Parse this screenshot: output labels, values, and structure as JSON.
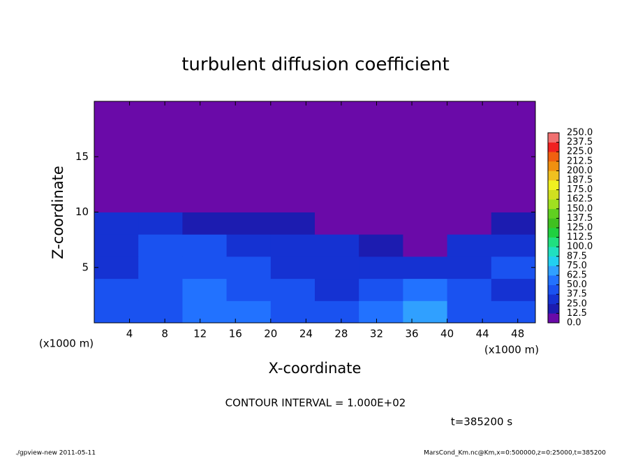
{
  "chart_data": {
    "type": "heatmap",
    "title": "turbulent diffusion coefficient",
    "xlabel": "X-coordinate",
    "ylabel": "Z-coordinate",
    "x_unit_label": "(x1000 m)",
    "annotation": "CONTOUR INTERVAL = 1.000E+02",
    "time_label": "t=385200 s",
    "footer_left": "./gpview-new  2011-05-11",
    "footer_right": "MarsCond_Km.nc@Km,x=0:500000,z=0:25000,t=385200",
    "xlim": [
      0,
      50
    ],
    "xticks": [
      4,
      8,
      12,
      16,
      20,
      24,
      28,
      32,
      36,
      40,
      44,
      48
    ],
    "ylim": [
      0,
      20
    ],
    "yticks": [
      5,
      10,
      15
    ],
    "x_edges": [
      0,
      5,
      10,
      15,
      20,
      25,
      30,
      35,
      40,
      45,
      50
    ],
    "z_edges": [
      0,
      2,
      4,
      6,
      8,
      10,
      20
    ],
    "z": [
      [
        45,
        40,
        55,
        50,
        45,
        40,
        50,
        70,
        45,
        40
      ],
      [
        40,
        45,
        50,
        45,
        40,
        35,
        40,
        55,
        40,
        35
      ],
      [
        35,
        40,
        45,
        40,
        35,
        30,
        25,
        35,
        30,
        40
      ],
      [
        35,
        40,
        40,
        35,
        30,
        25,
        15,
        10,
        25,
        35
      ],
      [
        30,
        25,
        20,
        15,
        20,
        5,
        0,
        0,
        5,
        20
      ],
      [
        0,
        0,
        0,
        0,
        0,
        0,
        0,
        0,
        0,
        0
      ]
    ],
    "levels": [
      {
        "value": 0,
        "label": "0.0"
      },
      12.5,
      {
        "value": 25,
        "label": "25.0"
      },
      37.5,
      {
        "value": 50,
        "label": "50.0"
      },
      62.5,
      {
        "value": 75,
        "label": "75.0"
      },
      87.5,
      {
        "value": 100,
        "label": "100.0"
      },
      112.5,
      {
        "value": 125,
        "label": "125.0"
      },
      137.5,
      {
        "value": 150,
        "label": "150.0"
      },
      162.5,
      {
        "value": 175,
        "label": "175.0"
      },
      187.5,
      {
        "value": 200,
        "label": "200.0"
      },
      212.5,
      {
        "value": 225,
        "label": "225.0"
      },
      237.5,
      {
        "value": 250,
        "label": "250.0"
      }
    ],
    "colors": [
      "#6a0aa8",
      "#1c1cb0",
      "#1532d2",
      "#1a52f0",
      "#2272ff",
      "#30a0ff",
      "#22d0f0",
      "#20e0c0",
      "#20e080",
      "#20d040",
      "#40c020",
      "#60d020",
      "#a0e020",
      "#d0e020",
      "#f0f020",
      "#f0c020",
      "#f09010",
      "#f06010",
      "#f02020",
      "#f07070"
    ]
  }
}
